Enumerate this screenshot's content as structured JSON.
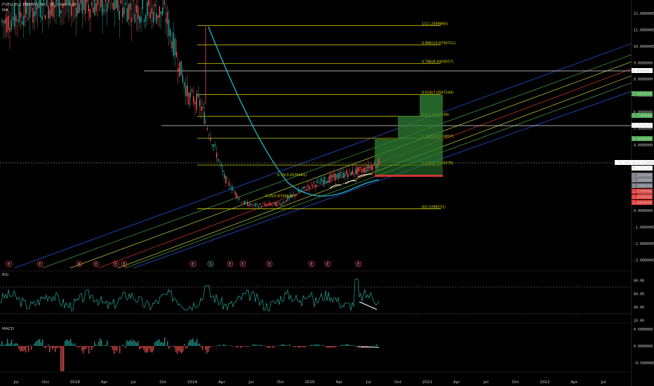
{
  "header": {
    "symbol_line": "FUELCELL ENERGY INC, 1D, Cboe BZX",
    "indicator": "MA"
  },
  "price_axis": {
    "ticks": [
      "12.0000000",
      "11.0000000",
      "10.0000000",
      "9.0000000",
      "8.0000000",
      "7.0000000",
      "6.0000000",
      "5.0000000",
      "4.0000000",
      "3.0000000",
      "2.0000000",
      "1.0000000",
      "0.0000000",
      "-1.0000000",
      "-2.0000000",
      "-3.0000000"
    ],
    "labels": [
      {
        "text": "8.4969907",
        "color": "#ffffff"
      },
      {
        "text": "7.6400000",
        "color": "#4caf50"
      },
      {
        "text": "5.7200000",
        "color": "#4caf50"
      },
      {
        "text": "5.1574579",
        "color": "#ffffff"
      },
      {
        "text": "4.4000000",
        "color": "#4caf50"
      },
      {
        "text": "-78.44% ⏷ 2.9100000",
        "color": "#ffffff"
      },
      {
        "text": "03:11:23",
        "color": "#ffffff"
      },
      {
        "text": "2.3800000",
        "color": "#787b86"
      },
      {
        "text": "2.1800000",
        "color": "#787b86"
      },
      {
        "text": "2.1000000",
        "color": "#787b86"
      },
      {
        "text": "2.0700000",
        "color": "#e53935"
      },
      {
        "text": "2.0200000",
        "color": "#e53935"
      },
      {
        "text": "2.0400000",
        "color": "#e53935"
      }
    ]
  },
  "fib_levels": [
    {
      "label": "1(11.2589866)",
      "value": 11.26
    },
    {
      "label": "0.886(10.0756711)",
      "value": 10.08
    },
    {
      "label": "0.786(8.9409557)",
      "value": 8.94
    },
    {
      "label": "0.618(7.0587549)",
      "value": 7.06
    },
    {
      "label": "0.5(5.7340039)",
      "value": 5.73
    },
    {
      "label": "0.382(4.4020057)",
      "value": 4.4
    },
    {
      "label": "0.236(2.7685575)",
      "value": 2.77
    },
    {
      "label": "0(0.1098231)",
      "value": 0.11
    }
  ],
  "pitchfork_labels": [
    "0.75(3.2076461)",
    "0.25(0.8729636)"
  ],
  "earnings_markers": [
    {
      "type": "E",
      "color": "#e53935"
    },
    {
      "type": "E",
      "color": "#e53935"
    },
    {
      "type": "E",
      "color": "#e53935"
    },
    {
      "type": "E",
      "color": "#e53935"
    },
    {
      "type": "E",
      "color": "#e53935"
    },
    {
      "type": "E",
      "color": "#e53935"
    },
    {
      "type": "E",
      "color": "#e53935"
    },
    {
      "type": "S",
      "color": "#43a047"
    },
    {
      "type": "E",
      "color": "#e53935"
    },
    {
      "type": "E",
      "color": "#e53935"
    },
    {
      "type": "E",
      "color": "#e53935"
    },
    {
      "type": "E",
      "color": "#e53935"
    },
    {
      "type": "E",
      "color": "#e53935"
    },
    {
      "type": "E",
      "color": "#e53935"
    }
  ],
  "rsi": {
    "title": "RSI",
    "ticks": [
      "80.00",
      "60.00",
      "40.00",
      "20.00"
    ]
  },
  "macd": {
    "title": "MACD",
    "ticks": [
      "0.5000000",
      "0.0000000",
      "-0.5000000"
    ]
  },
  "time_axis": [
    "Jul",
    "Oct",
    "2018",
    "Apr",
    "Jul",
    "Oct",
    "2019",
    "Apr",
    "Jul",
    "Oct",
    "2020",
    "Apr",
    "Jul",
    "Oct",
    "2021",
    "Apr",
    "Jul",
    "Oct",
    "2022",
    "Apr",
    "Jul"
  ],
  "colors": {
    "fib": "#c8c800",
    "pitch_blue": "#2962ff",
    "pitch_red": "#e53935",
    "pitch_green": "#4caf50",
    "pitch_yellow": "#cddc39",
    "ma": "#26c6da",
    "rsi": "#26a69a",
    "up": "#26a69a",
    "down": "#ef5350",
    "box": "#2e7d32"
  },
  "chart_data": {
    "type": "line",
    "title": "FUELCELL ENERGY INC, 1D, Cboe BZX",
    "xlabel": "",
    "ylabel": "",
    "ylim": [
      -3,
      12.5
    ],
    "series": [
      {
        "name": "",
        "x": [
          "2017-07",
          "2017-10",
          "2018-01",
          "2018-04",
          "2018-07",
          "2018-10",
          "2019-01",
          "2019-03",
          "2019-04",
          "2019-06",
          "2019-07",
          "2019-10",
          "2020-01",
          "2020-04",
          "2020-07",
          "2020-08"
        ],
        "values": [
          11.5,
          12.4,
          12.6,
          12.5,
          12.3,
          12.0,
          7.0,
          6.5,
          2.0,
          0.5,
          0.3,
          0.4,
          1.5,
          2.1,
          2.5,
          2.91
        ]
      }
    ]
  }
}
